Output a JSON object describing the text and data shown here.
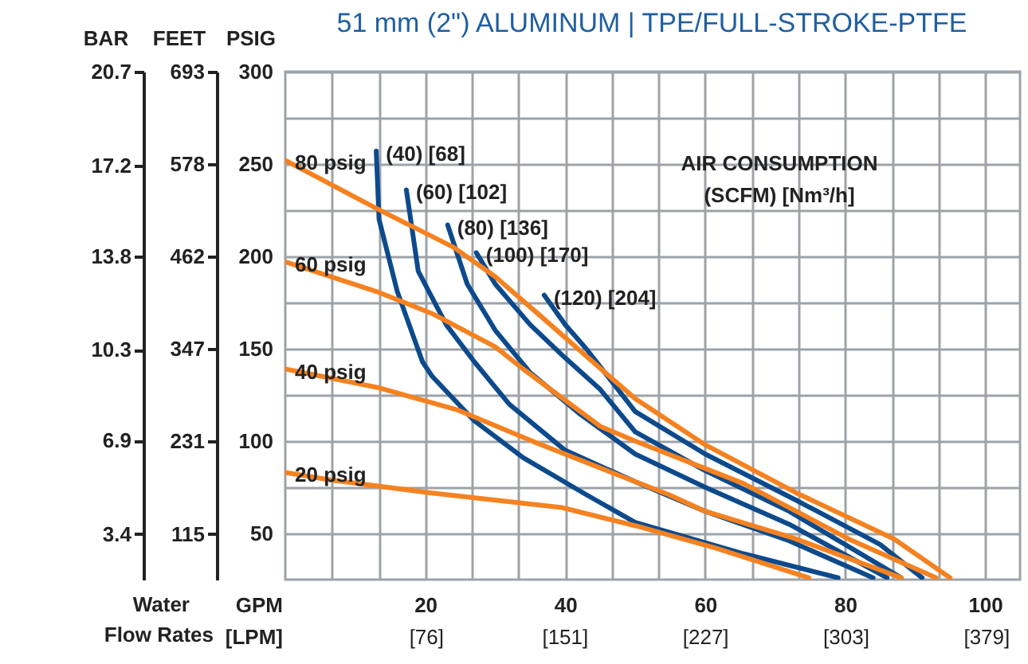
{
  "chart_data": {
    "type": "line",
    "title": "51 mm (2\") ALUMINUM | TPE/FULL-STROKE-PTFE",
    "xlabel": "GPM",
    "x2label": "[LPM]",
    "ylabel": "PSIG",
    "y2label": "BAR",
    "y3label": "FEET",
    "annotations": [
      "Water",
      "Flow Rates",
      "AIR CONSUMPTION",
      "(SCFM) [Nm³/h]"
    ],
    "xlim": [
      0,
      105
    ],
    "xticks": [
      {
        "value": 6.67,
        "label": null
      },
      {
        "value": 13.33,
        "label": null
      },
      20,
      {
        "value": 26.67,
        "label": null
      },
      {
        "value": 33.33,
        "label": null
      },
      40,
      {
        "value": 46.67,
        "label": null
      },
      {
        "value": 53.33,
        "label": null
      },
      60,
      {
        "value": 66.67,
        "label": null
      },
      {
        "value": 73.33,
        "label": null
      },
      80,
      {
        "value": 86.67,
        "label": null
      },
      {
        "value": 93.33,
        "label": null
      },
      100
    ],
    "x2lim": [
      0,
      397.4
    ],
    "x2ticks": [
      {
        "value": 76,
        "label": "[76]"
      },
      {
        "value": 151,
        "label": "[151]"
      },
      {
        "value": 227,
        "label": "[227]"
      },
      {
        "value": 303,
        "label": "[303]"
      },
      {
        "value": 379,
        "label": "[379]"
      }
    ],
    "ylim": [
      25,
      300
    ],
    "yticks": [
      50,
      {
        "value": 75,
        "label": null
      },
      100,
      {
        "value": 125,
        "label": null
      },
      150,
      {
        "value": 175,
        "label": null
      },
      200,
      {
        "value": 225,
        "label": null
      },
      250,
      {
        "value": 275,
        "label": null
      },
      300
    ],
    "y2lim": [
      1.7,
      20.7
    ],
    "y2ticks": [
      3.4,
      6.9,
      10.3,
      13.8,
      17.2,
      20.7
    ],
    "y3lim": [
      58,
      693
    ],
    "y3ticks": [
      115,
      231,
      347,
      462,
      578,
      693
    ],
    "grid": true,
    "legend": false,
    "series": [
      {
        "name": "(40) [68]",
        "color": "#0d4a8c",
        "x": [
          13,
          13.4,
          16,
          19.6,
          21,
          27,
          34,
          43,
          50,
          65.5,
          79
        ],
        "values": [
          257,
          220,
          181,
          143,
          135,
          111,
          91,
          71,
          56,
          39,
          26
        ]
      },
      {
        "name": "(60) [102]",
        "color": "#0d4a8c",
        "x": [
          17.3,
          19,
          23,
          27,
          32,
          40,
          50,
          60,
          72,
          84
        ],
        "values": [
          236,
          192,
          163,
          143,
          120,
          95,
          78,
          62,
          46,
          26
        ]
      },
      {
        "name": "(80) [136]",
        "color": "#0d4a8c",
        "x": [
          23.2,
          26,
          30,
          35,
          42,
          50,
          60,
          72,
          86
        ],
        "values": [
          217,
          185,
          160,
          137,
          115,
          93,
          75,
          55,
          26
        ]
      },
      {
        "name": "(100) [170]",
        "color": "#0d4a8c",
        "x": [
          27.3,
          30,
          35,
          40,
          45,
          50,
          60,
          72,
          88
        ],
        "values": [
          202,
          185,
          163,
          145,
          128,
          105,
          84,
          62,
          26
        ]
      },
      {
        "name": "(120) [204]",
        "color": "#0d4a8c",
        "x": [
          37,
          40,
          43,
          50,
          60,
          73,
          85,
          91
        ],
        "values": [
          179,
          163,
          150,
          116,
          93,
          68,
          44,
          26
        ]
      },
      {
        "name": "20 psig",
        "color": "#f58220",
        "x": [
          0,
          6.4,
          20.7,
          39.5,
          50.2,
          61.6,
          74.8
        ],
        "values": [
          83,
          79,
          72,
          64,
          54,
          42,
          26
        ]
      },
      {
        "name": "40 psig",
        "color": "#f58220",
        "x": [
          0,
          13.2,
          24.5,
          35.9,
          47.3,
          54.8,
          60,
          73,
          88
        ],
        "values": [
          139,
          129,
          117,
          99,
          82,
          71,
          62,
          47,
          26
        ]
      },
      {
        "name": "60 psig",
        "color": "#f58220",
        "x": [
          0,
          13,
          21,
          30,
          34,
          45,
          50,
          65.5,
          80.5,
          93
        ],
        "values": [
          197,
          181,
          169,
          151,
          139,
          108,
          100,
          77,
          47,
          26
        ]
      },
      {
        "name": "80 psig",
        "color": "#f58220",
        "x": [
          0,
          13,
          24,
          30,
          37,
          43,
          50,
          60,
          73,
          87,
          95
        ],
        "values": [
          252,
          226,
          205,
          189,
          166,
          146,
          123,
          98,
          72,
          47,
          26
        ]
      }
    ]
  }
}
